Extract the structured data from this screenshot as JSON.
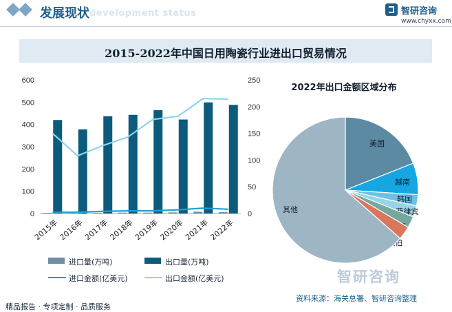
{
  "header": {
    "title": "发展现状",
    "ghost_text": "development status",
    "brand_name": "智研咨询",
    "brand_url": "www.chyxx.com"
  },
  "main_title": "2015-2022年中国日用陶瓷行业进出口贸易情况",
  "chart_data": [
    {
      "type": "bar",
      "categories": [
        "2015年",
        "2016年",
        "2017年",
        "2018年",
        "2019年",
        "2020年",
        "2021年",
        "2022年"
      ],
      "y_left": {
        "ticks": [
          0,
          100,
          200,
          300,
          400,
          500,
          600
        ],
        "ylim": [
          0,
          600
        ]
      },
      "y_right": {
        "ticks": [
          0,
          50,
          100,
          150,
          200,
          250
        ],
        "ylim": [
          0,
          250
        ]
      },
      "series": [
        {
          "name": "进口量(万吨)",
          "kind": "bar",
          "axis": "left",
          "color": "#6f8fa6",
          "values": [
            3,
            3,
            3,
            4,
            4,
            5,
            8,
            6
          ]
        },
        {
          "name": "出口量(万吨)",
          "kind": "bar",
          "axis": "left",
          "color": "#0c5b7d",
          "values": [
            420,
            378,
            437,
            443,
            464,
            422,
            499,
            488
          ]
        },
        {
          "name": "进口金额(亿美元)",
          "kind": "line",
          "axis": "right",
          "color": "#1e9fd6",
          "values": [
            2,
            2.5,
            4,
            5,
            5,
            7,
            10,
            8
          ]
        },
        {
          "name": "出口金额(亿美元)",
          "kind": "line",
          "axis": "right",
          "color": "#8fd4ec",
          "values": [
            150,
            108,
            127,
            143,
            176,
            182,
            215,
            214
          ]
        }
      ],
      "legend_position": "bottom"
    },
    {
      "type": "pie",
      "title": "2022年出口金额区域分布",
      "slices": [
        {
          "label": "美国",
          "value": 19,
          "color": "#5c8aa3"
        },
        {
          "label": "越南",
          "value": 7,
          "color": "#16a7e2"
        },
        {
          "label": "韩国",
          "value": 2.5,
          "color": "#6bc2e5"
        },
        {
          "label": "菲律宾",
          "value": 2.5,
          "color": "#99d3e8"
        },
        {
          "label": "马来西亚",
          "value": 2.5,
          "color": "#74a89f"
        },
        {
          "label": "沙特阿拉伯",
          "value": 3,
          "color": "#d9765d"
        },
        {
          "label": "其他",
          "value": 63.5,
          "color": "#9eb5c4"
        }
      ]
    }
  ],
  "source_text": "资料来源：海关总署、智研咨询整理",
  "footer_text": "精品报告 · 专项定制 · 品质服务",
  "watermark_text": "智研咨询"
}
